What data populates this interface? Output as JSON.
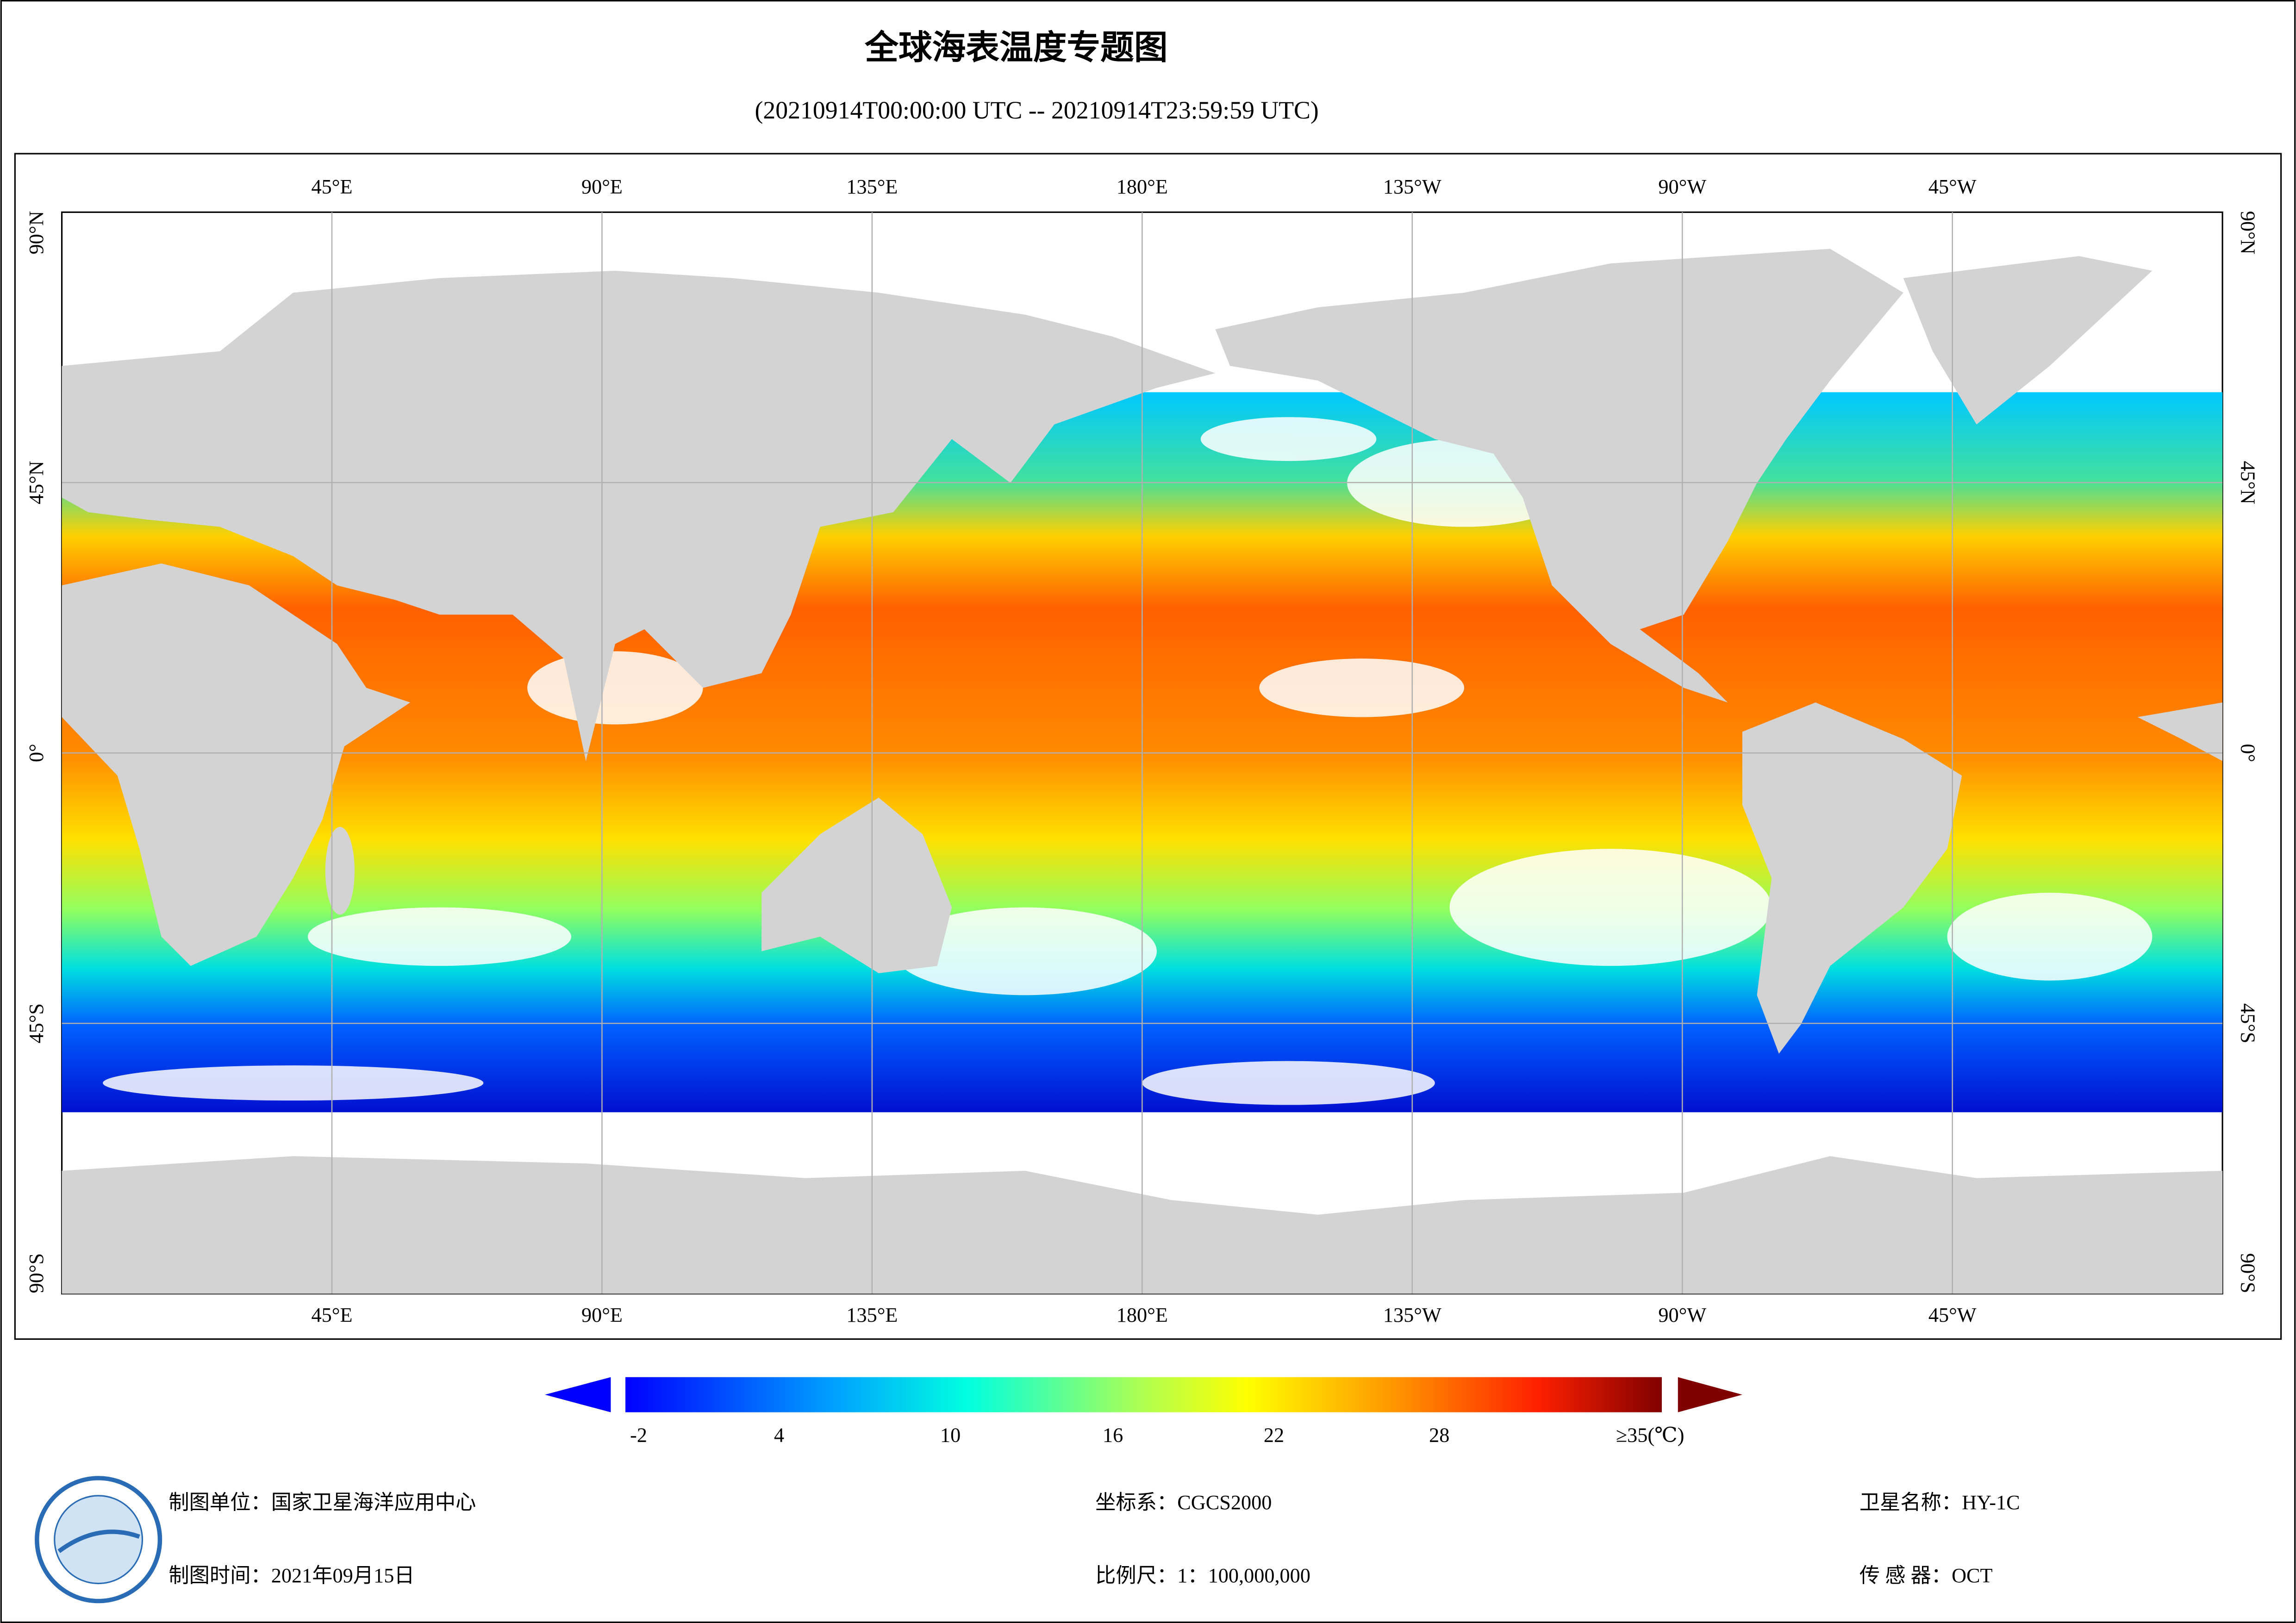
{
  "header": {
    "title": "全球海表温度专题图",
    "subtitle": "(20210914T00:00:00 UTC -- 20210914T23:59:59 UTC)"
  },
  "map": {
    "lon_labels": [
      "45°E",
      "90°E",
      "135°E",
      "180°E",
      "135°W",
      "90°W",
      "45°W"
    ],
    "lat_labels": [
      "90°N",
      "45°N",
      "0°",
      "45°S",
      "90°S"
    ]
  },
  "colorbar": {
    "ticks": [
      -2,
      4,
      10,
      16,
      22,
      28
    ],
    "max_label": "≥35(℃)"
  },
  "footer": {
    "unit": "制图单位：国家卫星海洋应用中心",
    "date": "制图时间：2021年09月15日",
    "crs": "坐标系：CGCS2000",
    "scale": "比例尺：1：100,000,000",
    "satellite": "卫星名称：HY-1C",
    "sensor": "传 感 器：OCT"
  }
}
